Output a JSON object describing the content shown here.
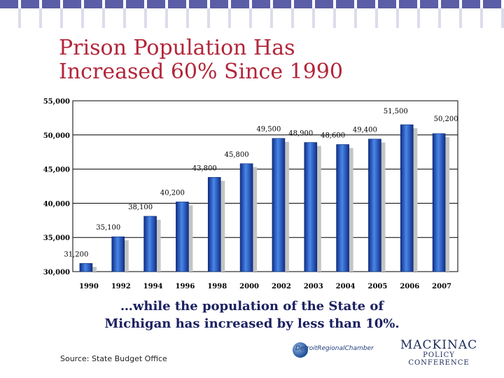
{
  "slide": {
    "title_line1": "Prison Population Has",
    "title_line2": "Increased 60% Since 1990",
    "subtitle_line1": "…while the population of the State of",
    "subtitle_line2": "Michigan has increased by less than 10%.",
    "source": "Source:  State Budget Office",
    "logo_chamber": "DetroitRegionalChamber",
    "logo_mackinac_top": "MACKINAC",
    "logo_mackinac_sub1": "POLICY",
    "logo_mackinac_sub2": "CONFERENCE",
    "colors": {
      "title": "#b2263a",
      "subtitle": "#1a2060",
      "bar": "#1f55c8",
      "stripe": "#5b5ea6"
    }
  },
  "chart_data": {
    "type": "bar",
    "title": "",
    "xlabel": "",
    "ylabel": "",
    "categories": [
      "1990",
      "1992",
      "1994",
      "1996",
      "1998",
      "2000",
      "2002",
      "2003",
      "2004",
      "2005",
      "2006",
      "2007"
    ],
    "values": [
      31200,
      35100,
      38100,
      40200,
      43800,
      45800,
      49500,
      48900,
      48600,
      49400,
      51500,
      50200
    ],
    "data_labels": [
      "31,200",
      "35,100",
      "38,100",
      "40,200",
      "43,800",
      "45,800",
      "49,500",
      "48,900",
      "48,600",
      "49,400",
      "51,500",
      "50,200"
    ],
    "ylim": [
      30000,
      55000
    ],
    "yticks": [
      30000,
      35000,
      40000,
      45000,
      50000,
      55000
    ],
    "ytick_labels": [
      "30,000",
      "35,000",
      "40,000",
      "45,000",
      "50,000",
      "55,000"
    ],
    "grid": true,
    "legend": "none",
    "bar_color": "#1f55c8"
  }
}
